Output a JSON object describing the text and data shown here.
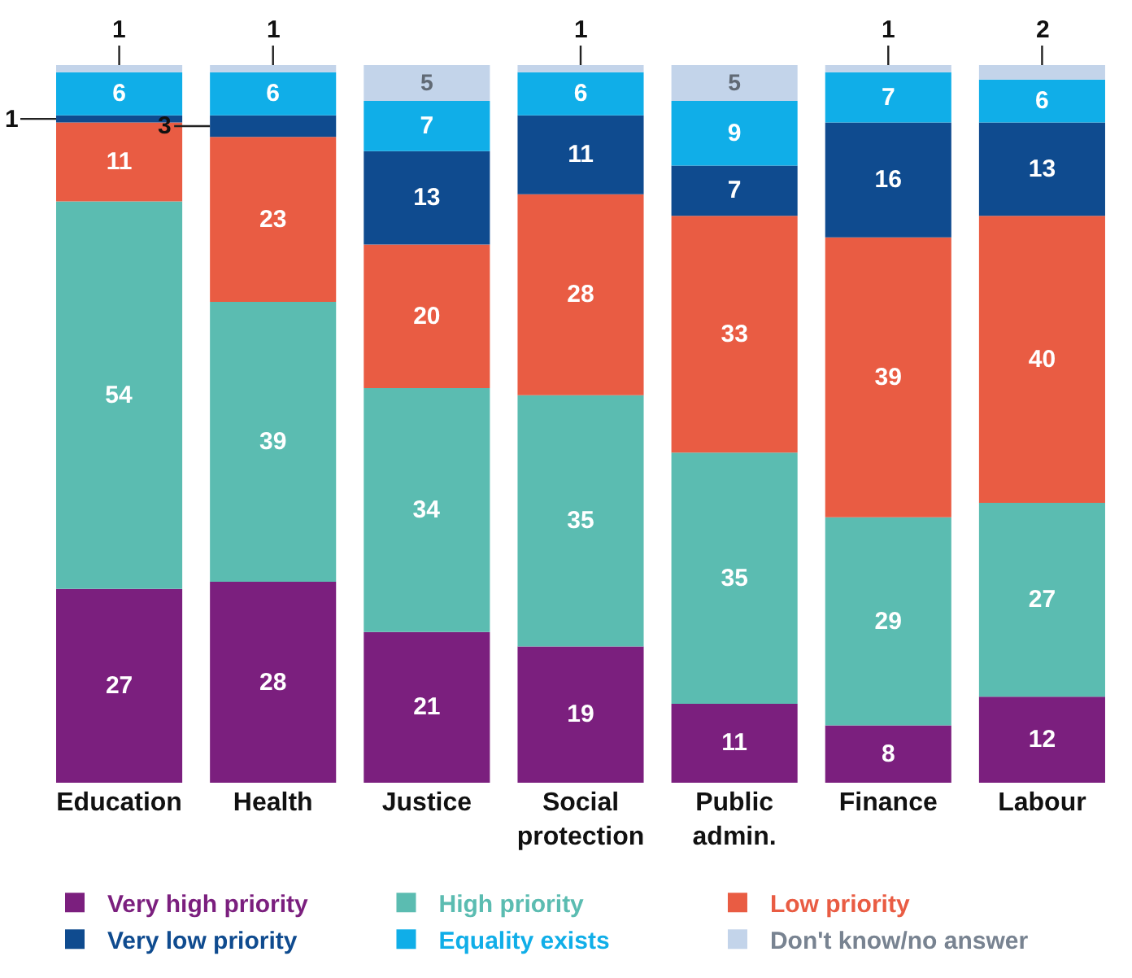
{
  "chart_data": {
    "type": "bar",
    "stacked": true,
    "data_labels": true,
    "legend": "bottom",
    "categories": [
      "Education",
      "Health",
      "Justice",
      "Social\nprotection",
      "Public\nadmin.",
      "Finance",
      "Labour"
    ],
    "series": [
      {
        "name": "Very high priority",
        "color": "#7b1f7e",
        "values": [
          27,
          28,
          21,
          19,
          11,
          8,
          12
        ]
      },
      {
        "name": "High priority",
        "color": "#5bbcb1",
        "values": [
          54,
          39,
          34,
          35,
          35,
          29,
          27
        ]
      },
      {
        "name": "Low priority",
        "color": "#e95c43",
        "values": [
          11,
          23,
          20,
          28,
          33,
          39,
          40
        ]
      },
      {
        "name": "Very low priority",
        "color": "#0f4b8f",
        "values": [
          1,
          3,
          13,
          11,
          7,
          16,
          13
        ]
      },
      {
        "name": "Equality exists",
        "color": "#10aee8",
        "values": [
          6,
          6,
          7,
          6,
          9,
          7,
          6
        ]
      },
      {
        "name": "Don't know/no answer",
        "color": "#c3d4ea",
        "values": [
          1,
          1,
          5,
          1,
          5,
          1,
          2
        ]
      }
    ]
  }
}
